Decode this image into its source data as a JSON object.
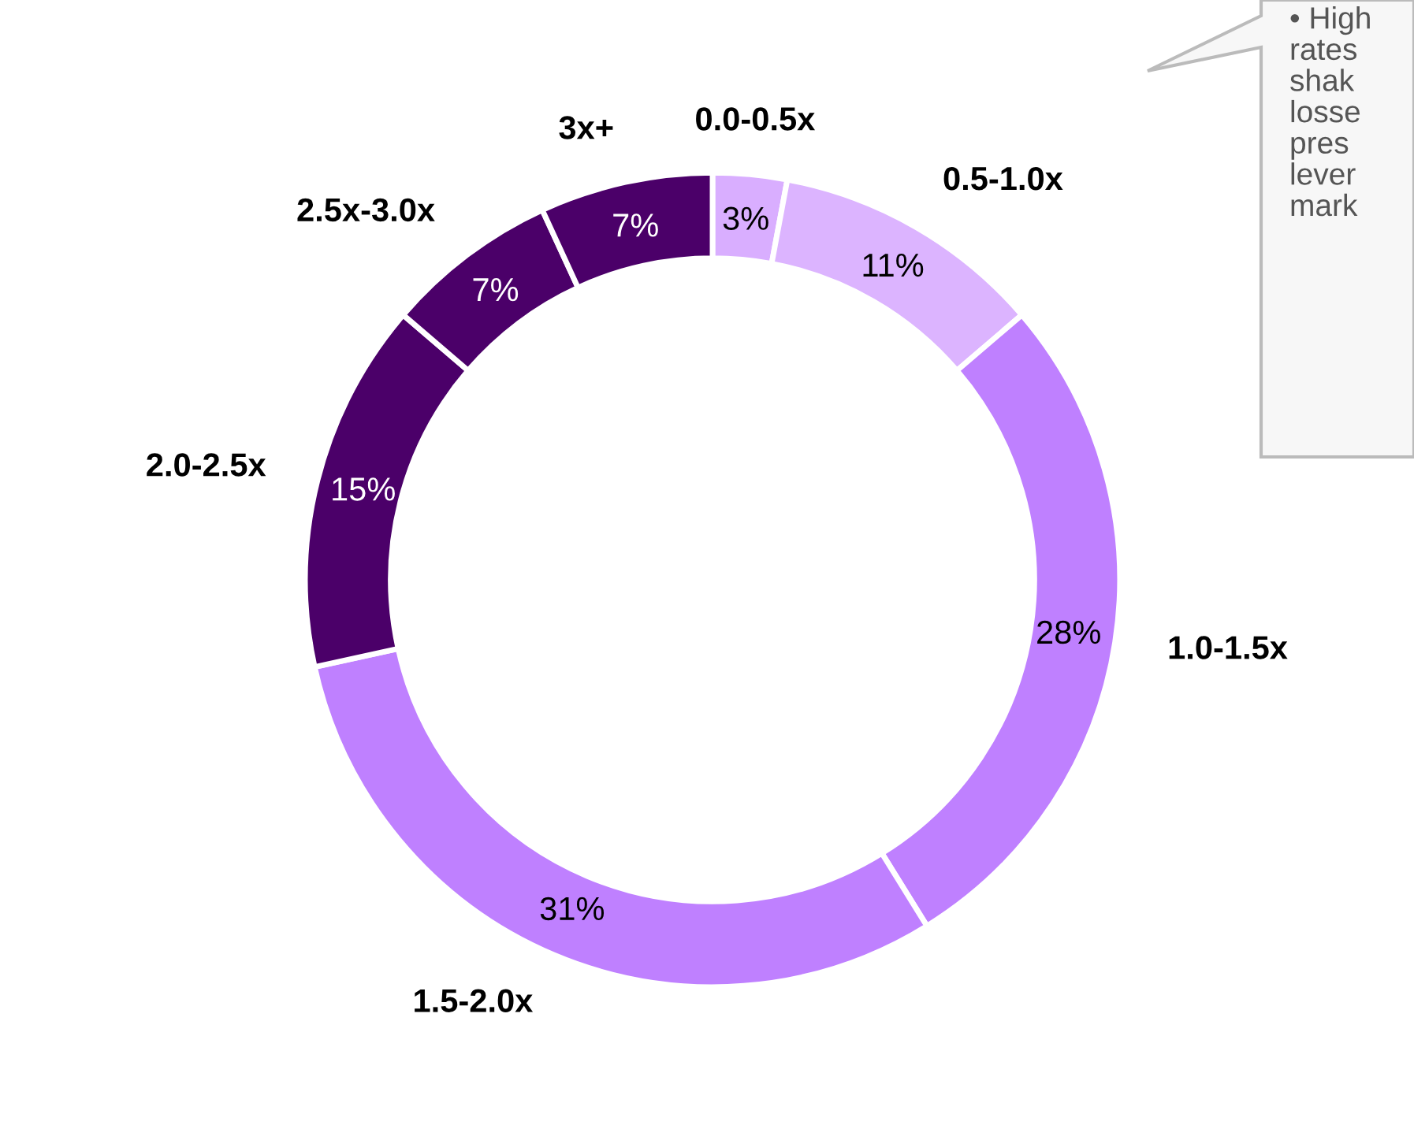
{
  "chart_data": {
    "type": "donut",
    "categories": [
      "0.0-0.5x",
      "0.5-1.0x",
      "1.0-1.5x",
      "1.5-2.0x",
      "2.0-2.5x",
      "2.5x-3.0x",
      "3x+"
    ],
    "values": [
      3,
      11,
      28,
      31,
      15,
      7,
      7
    ],
    "value_labels": [
      "3%",
      "11%",
      "28%",
      "31%",
      "15%",
      "7%",
      "7%"
    ],
    "colors": [
      "#d9aeff",
      "#dcb4ff",
      "#bf80ff",
      "#bf80ff",
      "#4b0069",
      "#4b0069",
      "#4b0069"
    ],
    "legend": false,
    "annotations": [
      "• High\nrates\nshak\nlosse\npres\nlever\nmark"
    ]
  }
}
